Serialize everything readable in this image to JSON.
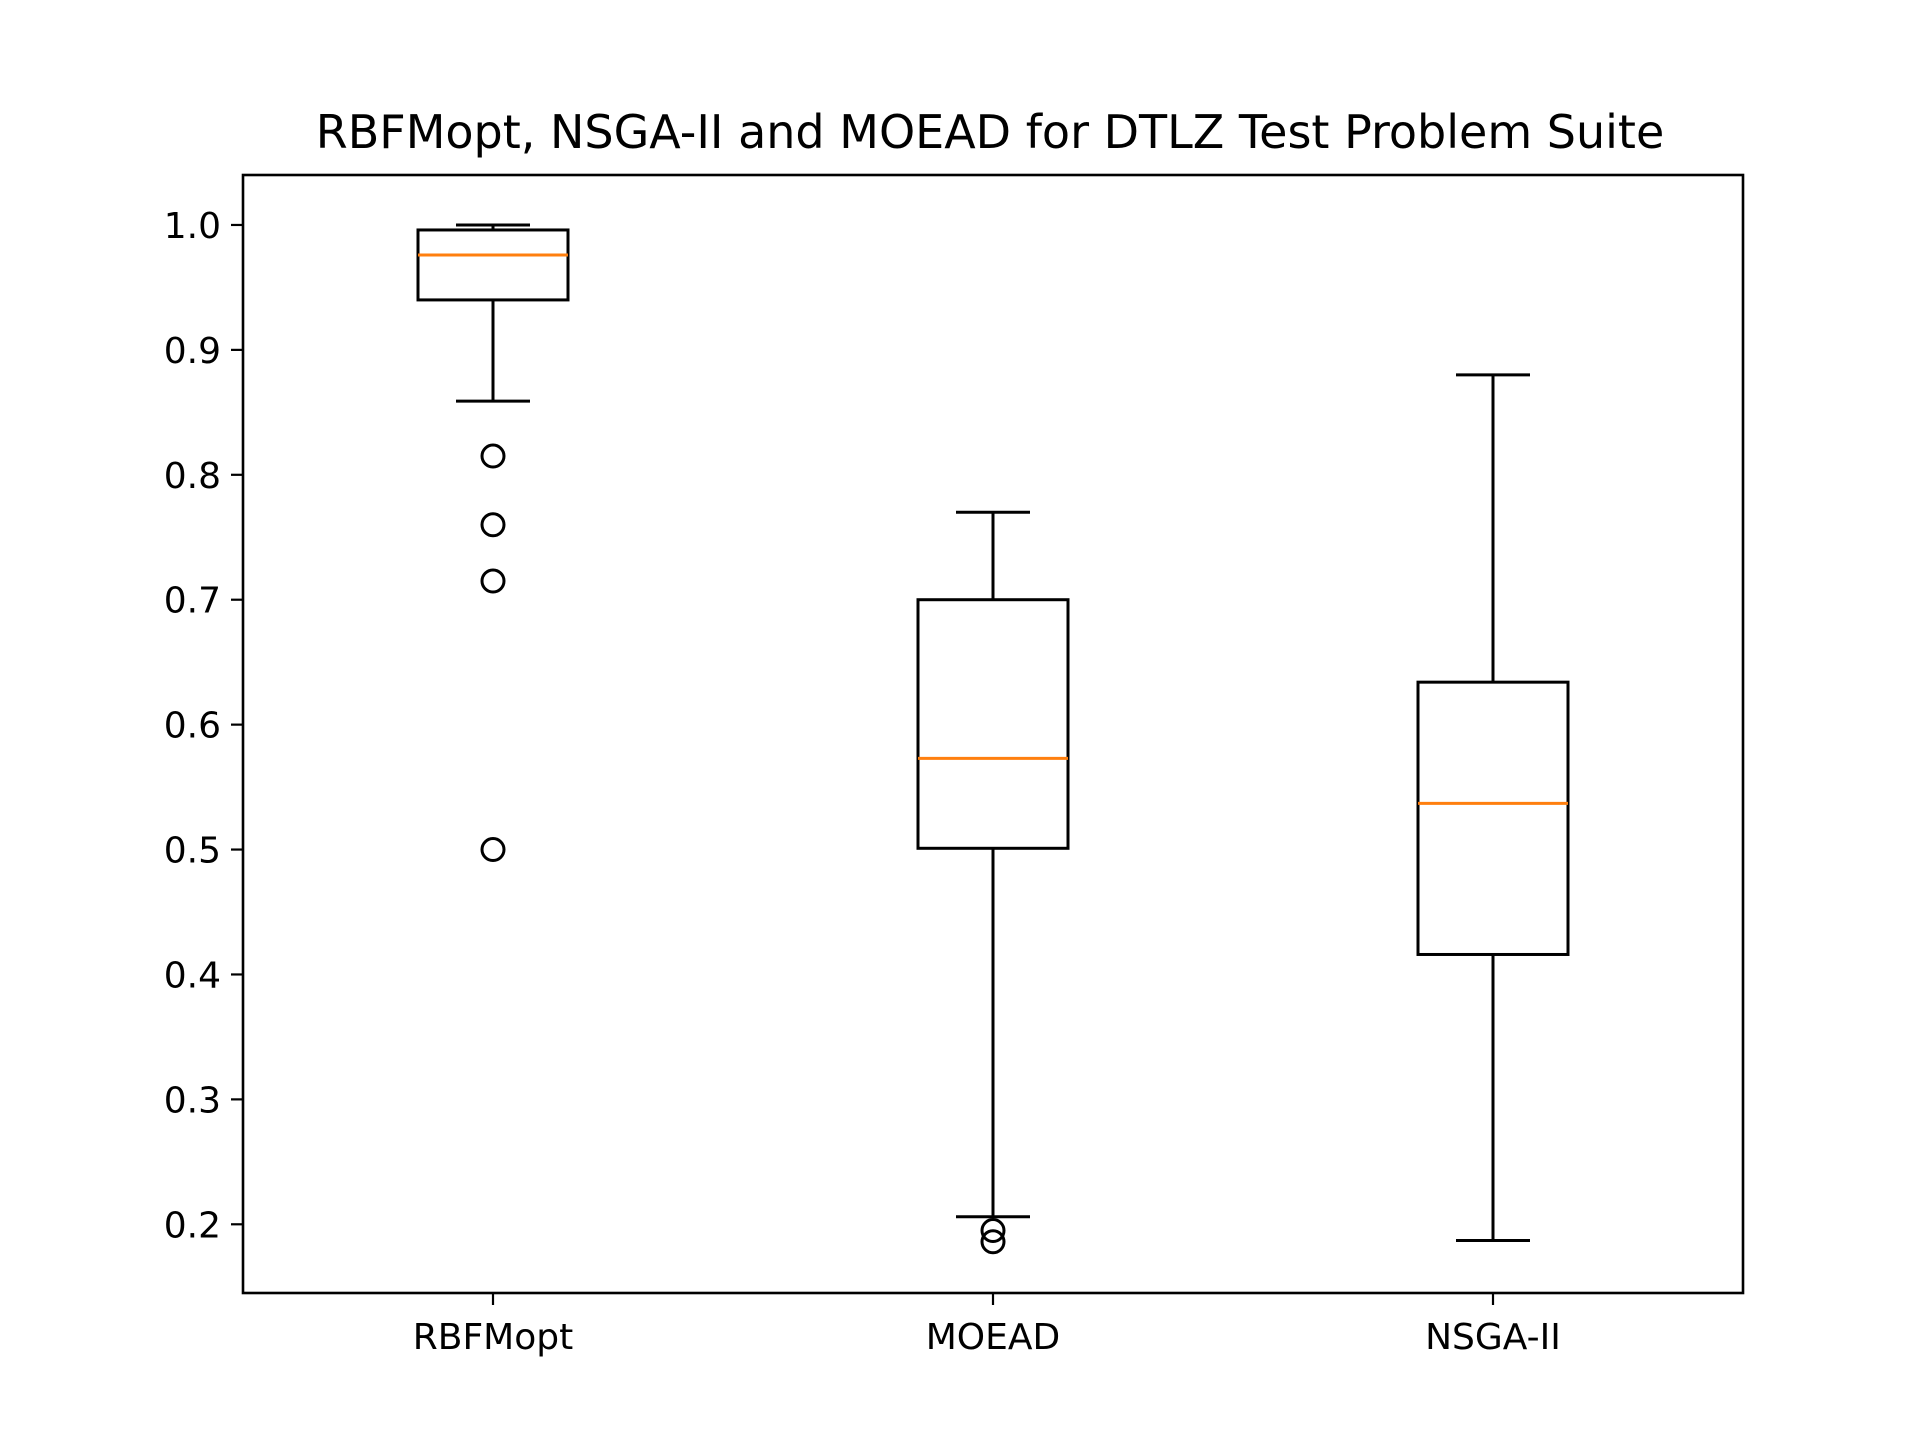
{
  "chart_data": {
    "type": "box",
    "title": "RBFMopt, NSGA-II and MOEAD for DTLZ Test Problem Suite",
    "xlabel": "",
    "ylabel": "",
    "ylim": [
      0.145,
      1.04
    ],
    "yticks": [
      0.2,
      0.3,
      0.4,
      0.5,
      0.6,
      0.7,
      0.8,
      0.9,
      1.0
    ],
    "ytick_labels": [
      "0.2",
      "0.3",
      "0.4",
      "0.5",
      "0.6",
      "0.7",
      "0.8",
      "0.9",
      "1.0"
    ],
    "grid": false,
    "median_color": "#ff7f0e",
    "line_color": "#000000",
    "categories": [
      "RBFMopt",
      "MOEAD",
      "NSGA-II"
    ],
    "boxes": [
      {
        "label": "RBFMopt",
        "whisker_low": 0.859,
        "q1": 0.94,
        "median": 0.976,
        "q3": 0.996,
        "whisker_high": 1.0,
        "fliers": [
          0.815,
          0.76,
          0.715,
          0.5
        ]
      },
      {
        "label": "MOEAD",
        "whisker_low": 0.206,
        "q1": 0.501,
        "median": 0.573,
        "q3": 0.7,
        "whisker_high": 0.77,
        "fliers": [
          0.195,
          0.186
        ]
      },
      {
        "label": "NSGA-II",
        "whisker_low": 0.187,
        "q1": 0.416,
        "median": 0.537,
        "q3": 0.634,
        "whisker_high": 0.88,
        "fliers": []
      }
    ]
  }
}
